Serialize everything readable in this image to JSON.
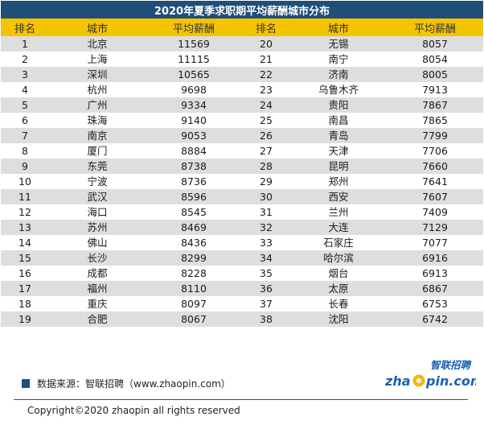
{
  "title": "2020年夏季求职期平均薪酬城市分布",
  "headers": [
    "排名",
    "城市",
    "平均薪酬",
    "排名",
    "城市",
    "平均薪酬"
  ],
  "rows": [
    {
      "rank1": "1",
      "city1": "北京",
      "salary1": "11569",
      "rank2": "20",
      "city2": "无锡",
      "salary2": "8057"
    },
    {
      "rank1": "2",
      "city1": "上海",
      "salary1": "11115",
      "rank2": "21",
      "city2": "南宁",
      "salary2": "8054"
    },
    {
      "rank1": "3",
      "city1": "深圳",
      "salary1": "10565",
      "rank2": "22",
      "city2": "济南",
      "salary2": "8005"
    },
    {
      "rank1": "4",
      "city1": "杭州",
      "salary1": "9698",
      "rank2": "23",
      "city2": "乌鲁木齐",
      "salary2": "7913"
    },
    {
      "rank1": "5",
      "city1": "广州",
      "salary1": "9334",
      "rank2": "24",
      "city2": "贵阳",
      "salary2": "7867"
    },
    {
      "rank1": "6",
      "city1": "珠海",
      "salary1": "9140",
      "rank2": "25",
      "city2": "南昌",
      "salary2": "7865"
    },
    {
      "rank1": "7",
      "city1": "南京",
      "salary1": "9053",
      "rank2": "26",
      "city2": "青岛",
      "salary2": "7799"
    },
    {
      "rank1": "8",
      "city1": "厦门",
      "salary1": "8884",
      "rank2": "27",
      "city2": "天津",
      "salary2": "7706"
    },
    {
      "rank1": "9",
      "city1": "东莞",
      "salary1": "8738",
      "rank2": "28",
      "city2": "昆明",
      "salary2": "7660"
    },
    {
      "rank1": "10",
      "city1": "宁波",
      "salary1": "8736",
      "rank2": "29",
      "city2": "郑州",
      "salary2": "7641"
    },
    {
      "rank1": "11",
      "city1": "武汉",
      "salary1": "8596",
      "rank2": "30",
      "city2": "西安",
      "salary2": "7607"
    },
    {
      "rank1": "12",
      "city1": "海口",
      "salary1": "8545",
      "rank2": "31",
      "city2": "兰州",
      "salary2": "7409"
    },
    {
      "rank1": "13",
      "city1": "苏州",
      "salary1": "8469",
      "rank2": "32",
      "city2": "大连",
      "salary2": "7129"
    },
    {
      "rank1": "14",
      "city1": "佛山",
      "salary1": "8436",
      "rank2": "33",
      "city2": "石家庄",
      "salary2": "7077"
    },
    {
      "rank1": "15",
      "city1": "长沙",
      "salary1": "8299",
      "rank2": "34",
      "city2": "哈尔滨",
      "salary2": "6916"
    },
    {
      "rank1": "16",
      "city1": "成都",
      "salary1": "8228",
      "rank2": "35",
      "city2": "烟台",
      "salary2": "6913"
    },
    {
      "rank1": "17",
      "city1": "福州",
      "salary1": "8110",
      "rank2": "36",
      "city2": "太原",
      "salary2": "6867"
    },
    {
      "rank1": "18",
      "city1": "重庆",
      "salary1": "8097",
      "rank2": "37",
      "city2": "长春",
      "salary2": "6753"
    },
    {
      "rank1": "19",
      "city1": "合肥",
      "salary1": "8067",
      "rank2": "38",
      "city2": "沈阳",
      "salary2": "6742"
    }
  ],
  "source": "数据来源：智联招聘（www.zhaopin.com）",
  "logo": {
    "cn": "智联招聘",
    "en_left": "zha",
    "en_right": "pin.com",
    "brand_blue": "#1a5fb4",
    "brand_yellow": "#f5b800"
  },
  "copyright": "Copyright©2020 zhaopin all rights reserved",
  "colors": {
    "title_bg": "#1f4e79",
    "header_bg": "#f5c400",
    "stripe": "#dedede"
  }
}
